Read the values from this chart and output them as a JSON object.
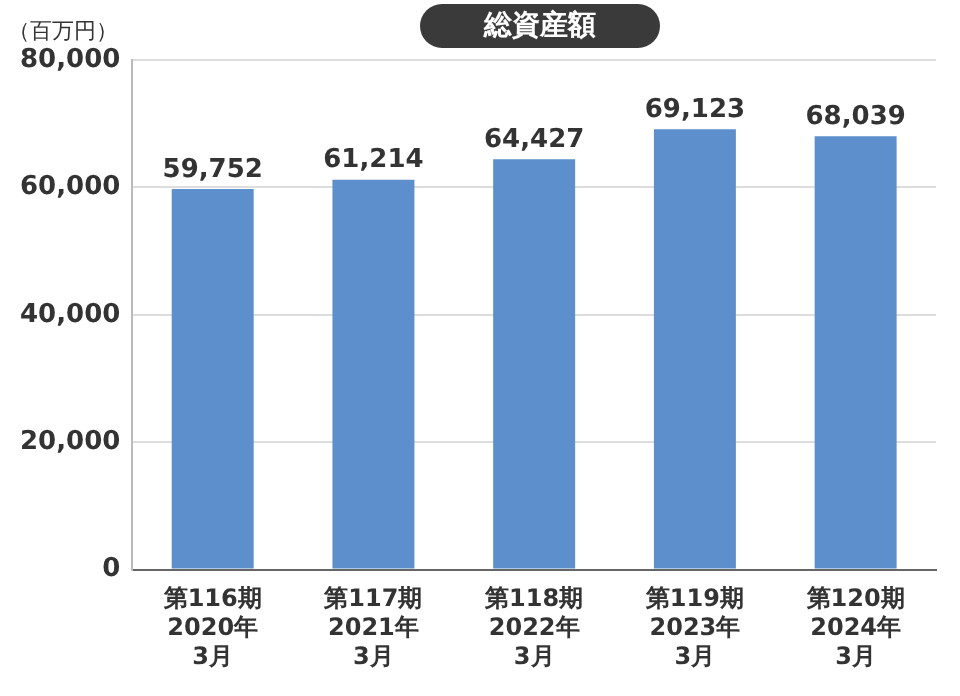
{
  "chart_data": {
    "type": "bar",
    "title": "総資産額",
    "ylabel": "（百万円）",
    "categories": [
      "第116期\n2020年\n3月",
      "第117期\n2021年\n3月",
      "第118期\n2022年\n3月",
      "第119期\n2023年\n3月",
      "第120期\n2024年\n3月"
    ],
    "values": [
      59752,
      61214,
      64427,
      69123,
      68039
    ],
    "value_labels": [
      "59,752",
      "61,214",
      "64,427",
      "69,123",
      "68,039"
    ],
    "color": "#5c8fcb",
    "ylim": [
      0,
      80000
    ],
    "yticks": [
      0,
      {
        "value": 20000,
        "label": "20,000"
      },
      {
        "value": 40000,
        "label": "40,000"
      },
      {
        "value": 60000,
        "label": "60,000"
      },
      {
        "value": 80000,
        "label": "80,000"
      }
    ],
    "grid": "y"
  }
}
